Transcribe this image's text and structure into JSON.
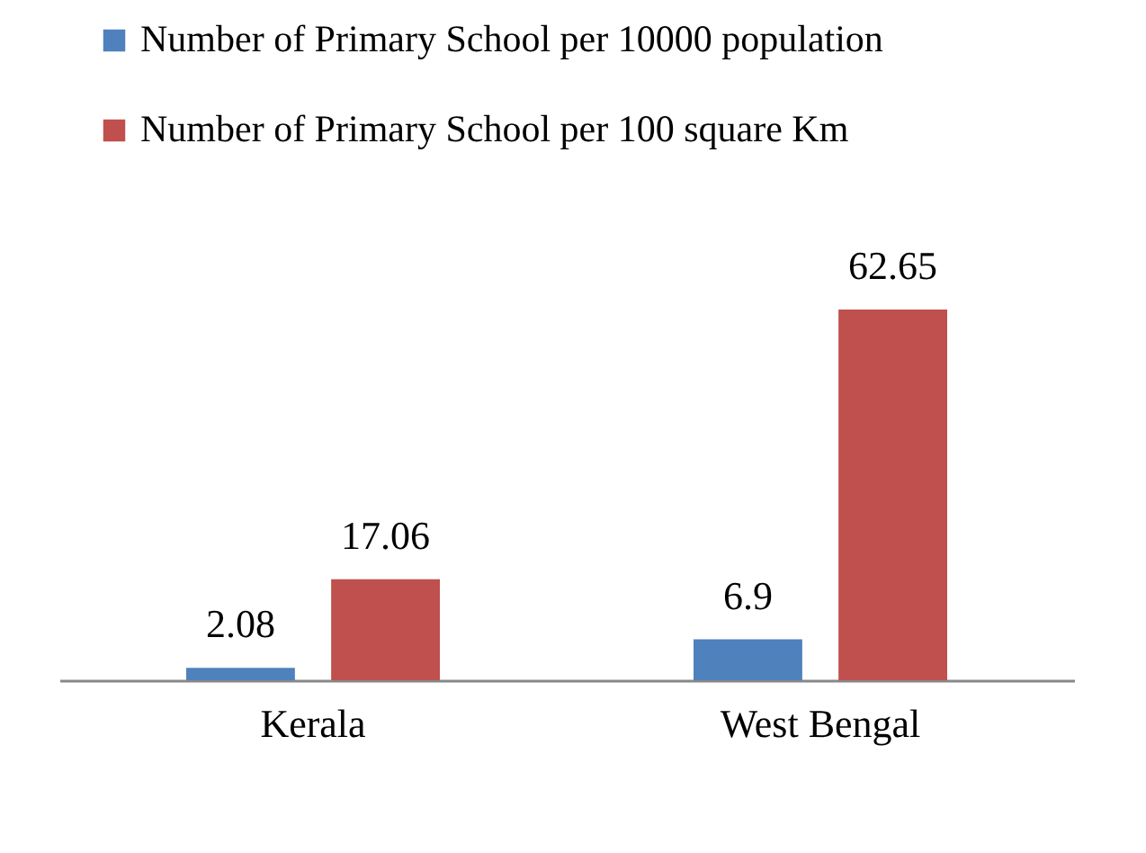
{
  "chart_data": {
    "type": "bar",
    "categories": [
      "Kerala",
      "West Bengal"
    ],
    "series": [
      {
        "name": "Number of Primary School per 10000 population",
        "color": "#4f81bd",
        "values": [
          2.08,
          6.9
        ]
      },
      {
        "name": "Number of Primary School per 100 square Km",
        "color": "#c0504d",
        "values": [
          17.06,
          62.65
        ]
      }
    ],
    "data_labels": true,
    "legend": "top left"
  }
}
